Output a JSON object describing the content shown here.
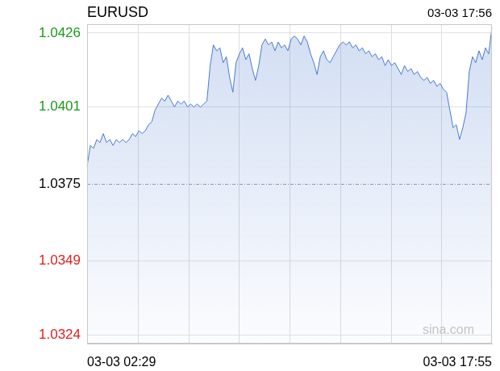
{
  "chart_data": {
    "type": "area",
    "title": "EURUSD",
    "subtitle": "03-03 17:56",
    "annotations": [
      "sina.com"
    ],
    "categories": [
      "03-03 02:29",
      null,
      null,
      null,
      null,
      null,
      null,
      null,
      null,
      null,
      null,
      null,
      null,
      null,
      null,
      null,
      null,
      null,
      null,
      null,
      null,
      null,
      null,
      null,
      null,
      null,
      null,
      null,
      null,
      null,
      null,
      null,
      null,
      null,
      null,
      null,
      null,
      null,
      null,
      null,
      null,
      null,
      null,
      null,
      null,
      null,
      null,
      null,
      null,
      null,
      null,
      null,
      null,
      null,
      null,
      null,
      null,
      null,
      null,
      null,
      null,
      null,
      null,
      null,
      null,
      null,
      null,
      null,
      null,
      null,
      null,
      null,
      null,
      null,
      null,
      null,
      null,
      null,
      null,
      null,
      null,
      null,
      null,
      null,
      null,
      null,
      null,
      null,
      null,
      null,
      null,
      null,
      null,
      null,
      null,
      null,
      null,
      null,
      null,
      null,
      null,
      null,
      null,
      null,
      null,
      null,
      null,
      null,
      null,
      null,
      null,
      null,
      null,
      null,
      null,
      null,
      null,
      null,
      null,
      null,
      null,
      null,
      null,
      null,
      null,
      "03-03 17:55"
    ],
    "values": [
      1.0381,
      1.0388,
      1.0387,
      1.039,
      1.0389,
      1.0392,
      1.0389,
      1.039,
      1.0388,
      1.039,
      1.0389,
      1.039,
      1.0389,
      1.039,
      1.0392,
      1.0391,
      1.0393,
      1.0392,
      1.0393,
      1.0395,
      1.0396,
      1.04,
      1.0402,
      1.0404,
      1.0403,
      1.0405,
      1.0403,
      1.0401,
      1.0403,
      1.0402,
      1.0403,
      1.0401,
      1.0402,
      1.0401,
      1.0402,
      1.0401,
      1.0402,
      1.0403,
      1.0415,
      1.0422,
      1.042,
      1.0421,
      1.0416,
      1.0418,
      1.0411,
      1.0406,
      1.0416,
      1.0419,
      1.0421,
      1.0417,
      1.0419,
      1.0414,
      1.041,
      1.0415,
      1.0422,
      1.0424,
      1.0422,
      1.0423,
      1.042,
      1.0423,
      1.0421,
      1.0422,
      1.042,
      1.0424,
      1.0425,
      1.0424,
      1.0422,
      1.0425,
      1.0423,
      1.0419,
      1.0416,
      1.0412,
      1.0418,
      1.042,
      1.0417,
      1.0416,
      1.0418,
      1.042,
      1.0422,
      1.0423,
      1.0422,
      1.0423,
      1.0421,
      1.0422,
      1.042,
      1.0421,
      1.0419,
      1.042,
      1.0418,
      1.0419,
      1.0417,
      1.0418,
      1.0415,
      1.0417,
      1.0415,
      1.0416,
      1.0414,
      1.0412,
      1.0415,
      1.0413,
      1.0414,
      1.0412,
      1.0413,
      1.0411,
      1.041,
      1.0411,
      1.0409,
      1.041,
      1.0408,
      1.0409,
      1.0407,
      1.0406,
      1.04,
      1.0394,
      1.0395,
      1.039,
      1.0394,
      1.0399,
      1.0413,
      1.0418,
      1.0416,
      1.042,
      1.0417,
      1.0421,
      1.0419,
      1.0428
    ],
    "color": "#4a7acf",
    "ylim": [
      1.0321,
      1.0429
    ],
    "yticks": [
      1.0324,
      1.0349,
      1.0375,
      1.0401,
      1.0426
    ],
    "grid": true
  }
}
